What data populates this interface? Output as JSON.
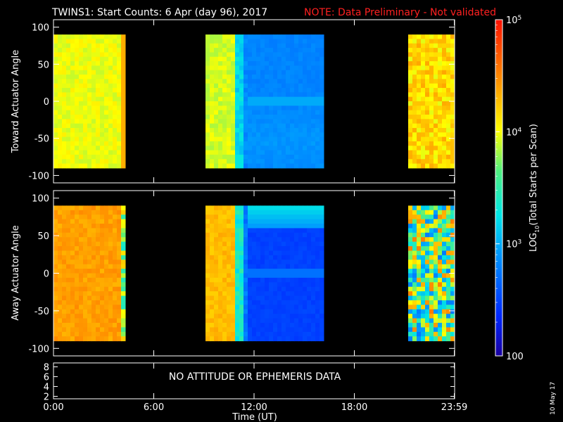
{
  "header": {
    "title": "TWINS1: Start Counts:  6 Apr (day  96), 2017",
    "note": "NOTE: Data Preliminary - Not validated"
  },
  "side_stamp": "10 May 17",
  "colors": {
    "background": "#000000",
    "frame": "#ffffff",
    "note": "#ff2020"
  },
  "chart_data": [
    {
      "type": "heatmap",
      "panel": "toward",
      "ylabel": "Toward Actuator Angle",
      "ylim": [
        -110,
        110
      ],
      "yticks": [
        100,
        50,
        0,
        -50,
        -100
      ],
      "data_angle_range": [
        -90,
        90
      ],
      "xlim_hours": [
        0,
        24
      ],
      "data_segments": [
        {
          "start": "00:00",
          "end": "04:10",
          "start_h": 0.0,
          "end_h": 4.17,
          "level": "~10^4 (yellow, slight orange at edges)"
        },
        {
          "start": "09:00",
          "end": "16:15",
          "start_h": 9.0,
          "end_h": 16.25,
          "level": "~10^4 falling to ~10^3 after 11:40"
        },
        {
          "start": "21:10",
          "end": "23:59",
          "start_h": 21.17,
          "end_h": 23.98,
          "level": "~10^4 to 3x10^4 (yellow/orange)"
        }
      ]
    },
    {
      "type": "heatmap",
      "panel": "away",
      "ylabel": "Away Actuator Angle",
      "ylim": [
        -110,
        110
      ],
      "yticks": [
        100,
        50,
        0,
        -50,
        -100
      ],
      "data_angle_range": [
        -90,
        90
      ],
      "xlim_hours": [
        0,
        24
      ],
      "data_segments": [
        {
          "start": "00:00",
          "end": "04:10",
          "start_h": 0.0,
          "end_h": 4.17,
          "level": "~3x10^4 (orange)"
        },
        {
          "start": "09:00",
          "end": "16:15",
          "start_h": 9.0,
          "end_h": 16.25,
          "level": "~10^4 falling to <10^3 after 11:40"
        },
        {
          "start": "21:10",
          "end": "23:59",
          "start_h": 21.17,
          "end_h": 23.98,
          "level": "mixed ~10^3 to 5x10^4"
        }
      ]
    },
    {
      "type": "line",
      "panel": "ephemeris",
      "yticks": [
        8,
        6,
        4,
        2
      ],
      "message": "NO ATTITUDE OR EPHEMERIS DATA",
      "xticks": [
        {
          "label": "0:00",
          "h": 0
        },
        {
          "label": "6:00",
          "h": 6
        },
        {
          "label": "12:00",
          "h": 12
        },
        {
          "label": "18:00",
          "h": 18
        },
        {
          "label": "23:59",
          "h": 23.98
        }
      ],
      "xlabel": "Time (UT)"
    }
  ],
  "colorbar": {
    "label": "LOG10(Total Starts per Scan)",
    "label_parts": [
      "LOG",
      "10",
      "(Total Starts per Scan)"
    ],
    "scale": "log",
    "range": [
      100,
      100000
    ],
    "ticks": [
      {
        "label": "100",
        "value": 100
      },
      {
        "label": "10^3",
        "value": 1000
      },
      {
        "label": "10^4",
        "value": 10000
      },
      {
        "label": "10^5",
        "value": 100000
      }
    ]
  }
}
